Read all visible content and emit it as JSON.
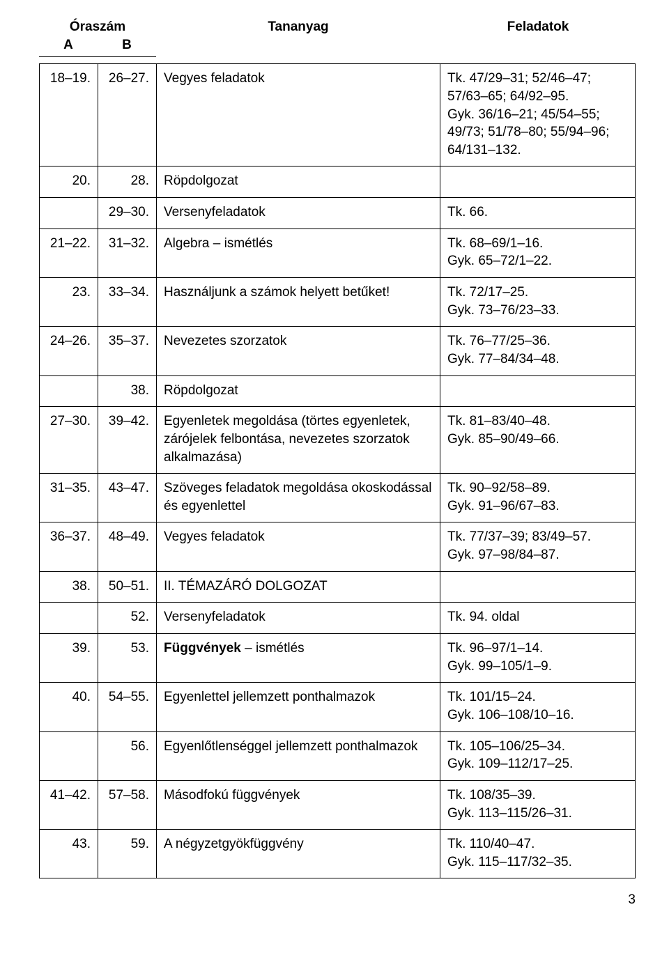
{
  "header": {
    "oraszam": "Óraszám",
    "colA": "A",
    "colB": "B",
    "tananyag": "Tananyag",
    "feladatok": "Feladatok"
  },
  "rows": [
    {
      "a": "18–19.",
      "b": "26–27.",
      "c": "Vegyes feladatok",
      "d": "Tk. 47/29–31; 52/46–47;\n57/63–65; 64/92–95.\nGyk. 36/16–21; 45/54–55;\n49/73; 51/78–80; 55/94–96;\n64/131–132."
    },
    {
      "a": "20.",
      "b": "28.",
      "c": "Röpdolgozat",
      "d": ""
    },
    {
      "a": "",
      "b": "29–30.",
      "c": "Versenyfeladatok",
      "d": "Tk. 66."
    },
    {
      "a": "21–22.",
      "b": "31–32.",
      "c": "Algebra – ismétlés",
      "d": "Tk. 68–69/1–16.\nGyk. 65–72/1–22."
    },
    {
      "a": "23.",
      "b": "33–34.",
      "c": "Használjunk a számok helyett betűket!",
      "d": "Tk. 72/17–25.\nGyk. 73–76/23–33."
    },
    {
      "a": "24–26.",
      "b": "35–37.",
      "c": "Nevezetes szorzatok",
      "d": "Tk. 76–77/25–36.\nGyk. 77–84/34–48."
    },
    {
      "a": "",
      "b": "38.",
      "c": "Röpdolgozat",
      "d": ""
    },
    {
      "a": "27–30.",
      "b": "39–42.",
      "c": "Egyenletek megoldása (törtes egyenletek, zárójelek felbontása, nevezetes szorzatok alkalmazása)",
      "d": "Tk. 81–83/40–48.\nGyk. 85–90/49–66."
    },
    {
      "a": "31–35.",
      "b": "43–47.",
      "c": "Szöveges feladatok megoldása okoskodással és egyenlettel",
      "d": "Tk. 90–92/58–89.\nGyk. 91–96/67–83."
    },
    {
      "a": "36–37.",
      "b": "48–49.",
      "c": "Vegyes feladatok",
      "d": "Tk. 77/37–39; 83/49–57.\nGyk. 97–98/84–87."
    },
    {
      "a": "38.",
      "b": "50–51.",
      "c": "II. TÉMAZÁRÓ DOLGOZAT",
      "d": ""
    },
    {
      "a": "",
      "b": "52.",
      "c": "Versenyfeladatok",
      "d": "Tk. 94. oldal"
    },
    {
      "a": "39.",
      "b": "53.",
      "c": "<span class=\"bold\">Függvények</span> – ismétlés",
      "d": "Tk. 96–97/1–14.\nGyk. 99–105/1–9."
    },
    {
      "a": "40.",
      "b": "54–55.",
      "c": "Egyenlettel jellemzett ponthalmazok",
      "d": "Tk. 101/15–24.\nGyk. 106–108/10–16."
    },
    {
      "a": "",
      "b": "56.",
      "c": "Egyenlőtlenséggel jellemzett ponthalmazok",
      "d": "Tk. 105–106/25–34.\nGyk. 109–112/17–25."
    },
    {
      "a": "41–42.",
      "b": "57–58.",
      "c": "Másodfokú függvények",
      "d": "Tk. 108/35–39.\nGyk. 113–115/26–31."
    },
    {
      "a": "43.",
      "b": "59.",
      "c": "A négyzetgyökfüggvény",
      "d": "Tk. 110/40–47.\nGyk. 115–117/32–35."
    }
  ],
  "pageNumber": "3"
}
